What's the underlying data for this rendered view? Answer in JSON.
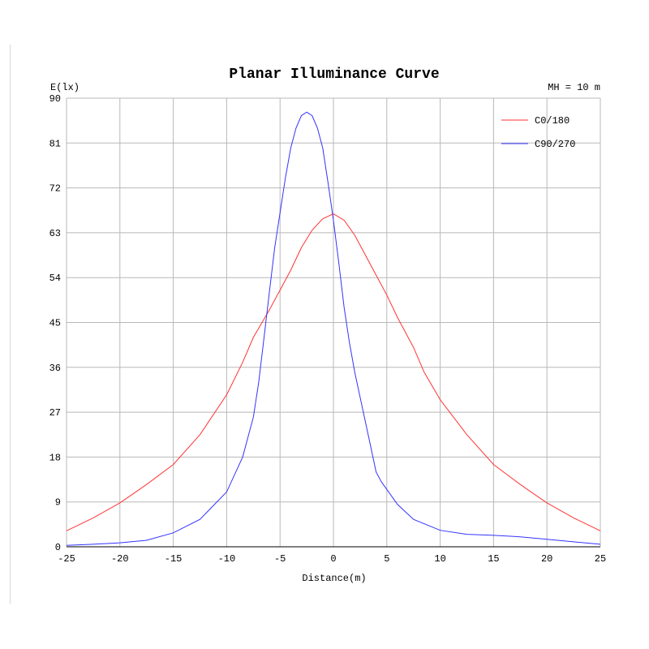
{
  "chart_data": {
    "type": "line",
    "title": "Planar Illuminance Curve",
    "ylabel": "E(lx)",
    "xlabel": "Distance(m)",
    "annotation": "MH = 10 m",
    "xlim": [
      -25,
      25
    ],
    "ylim": [
      0,
      90
    ],
    "x_ticks": [
      -25,
      -20,
      -15,
      -10,
      -5,
      0,
      5,
      10,
      15,
      20,
      25
    ],
    "y_ticks": [
      0,
      9,
      18,
      27,
      36,
      45,
      54,
      63,
      72,
      81,
      90
    ],
    "grid": true,
    "legend_position": "top-right",
    "series": [
      {
        "name": "C0/180",
        "color": "#ff3333",
        "points": [
          [
            -25,
            3.2
          ],
          [
            -22.5,
            5.8
          ],
          [
            -20,
            8.8
          ],
          [
            -17.5,
            12.5
          ],
          [
            -15,
            16.5
          ],
          [
            -12.5,
            22.5
          ],
          [
            -10,
            30.5
          ],
          [
            -8.5,
            37
          ],
          [
            -7.5,
            42
          ],
          [
            -6,
            47.5
          ],
          [
            -5,
            51.5
          ],
          [
            -4,
            55.5
          ],
          [
            -3,
            60
          ],
          [
            -2,
            63.5
          ],
          [
            -1,
            65.8
          ],
          [
            0,
            66.8
          ],
          [
            1,
            65.5
          ],
          [
            2,
            62.5
          ],
          [
            3,
            58.5
          ],
          [
            4,
            54.5
          ],
          [
            5,
            50.5
          ],
          [
            6,
            46
          ],
          [
            7.5,
            40
          ],
          [
            8.5,
            35
          ],
          [
            10,
            29.5
          ],
          [
            12.5,
            22.5
          ],
          [
            15,
            16.5
          ],
          [
            17.5,
            12.5
          ],
          [
            20,
            8.8
          ],
          [
            22.5,
            5.8
          ],
          [
            25,
            3.2
          ]
        ]
      },
      {
        "name": "C90/270",
        "color": "#3333ff",
        "points": [
          [
            -25,
            0.3
          ],
          [
            -22.5,
            0.5
          ],
          [
            -20,
            0.8
          ],
          [
            -17.5,
            1.3
          ],
          [
            -15,
            2.8
          ],
          [
            -12.5,
            5.5
          ],
          [
            -10,
            11
          ],
          [
            -8.5,
            18
          ],
          [
            -7.5,
            26
          ],
          [
            -7,
            33
          ],
          [
            -6.5,
            42
          ],
          [
            -6,
            51
          ],
          [
            -5.5,
            60
          ],
          [
            -5,
            67
          ],
          [
            -4.5,
            74
          ],
          [
            -4,
            80
          ],
          [
            -3.5,
            84
          ],
          [
            -3,
            86.5
          ],
          [
            -2.5,
            87.2
          ],
          [
            -2,
            86.5
          ],
          [
            -1.5,
            84
          ],
          [
            -1,
            80
          ],
          [
            -0.5,
            73
          ],
          [
            0,
            65.5
          ],
          [
            0.5,
            57
          ],
          [
            1,
            48
          ],
          [
            1.5,
            41
          ],
          [
            2,
            35
          ],
          [
            2.5,
            30
          ],
          [
            3,
            25
          ],
          [
            3.5,
            20
          ],
          [
            4,
            15
          ],
          [
            4.5,
            13
          ],
          [
            5,
            11.5
          ],
          [
            6,
            8.5
          ],
          [
            7.5,
            5.5
          ],
          [
            10,
            3.3
          ],
          [
            12.5,
            2.5
          ],
          [
            15,
            2.3
          ],
          [
            17.5,
            2
          ],
          [
            20,
            1.5
          ],
          [
            22.5,
            1
          ],
          [
            25,
            0.5
          ]
        ]
      }
    ]
  }
}
